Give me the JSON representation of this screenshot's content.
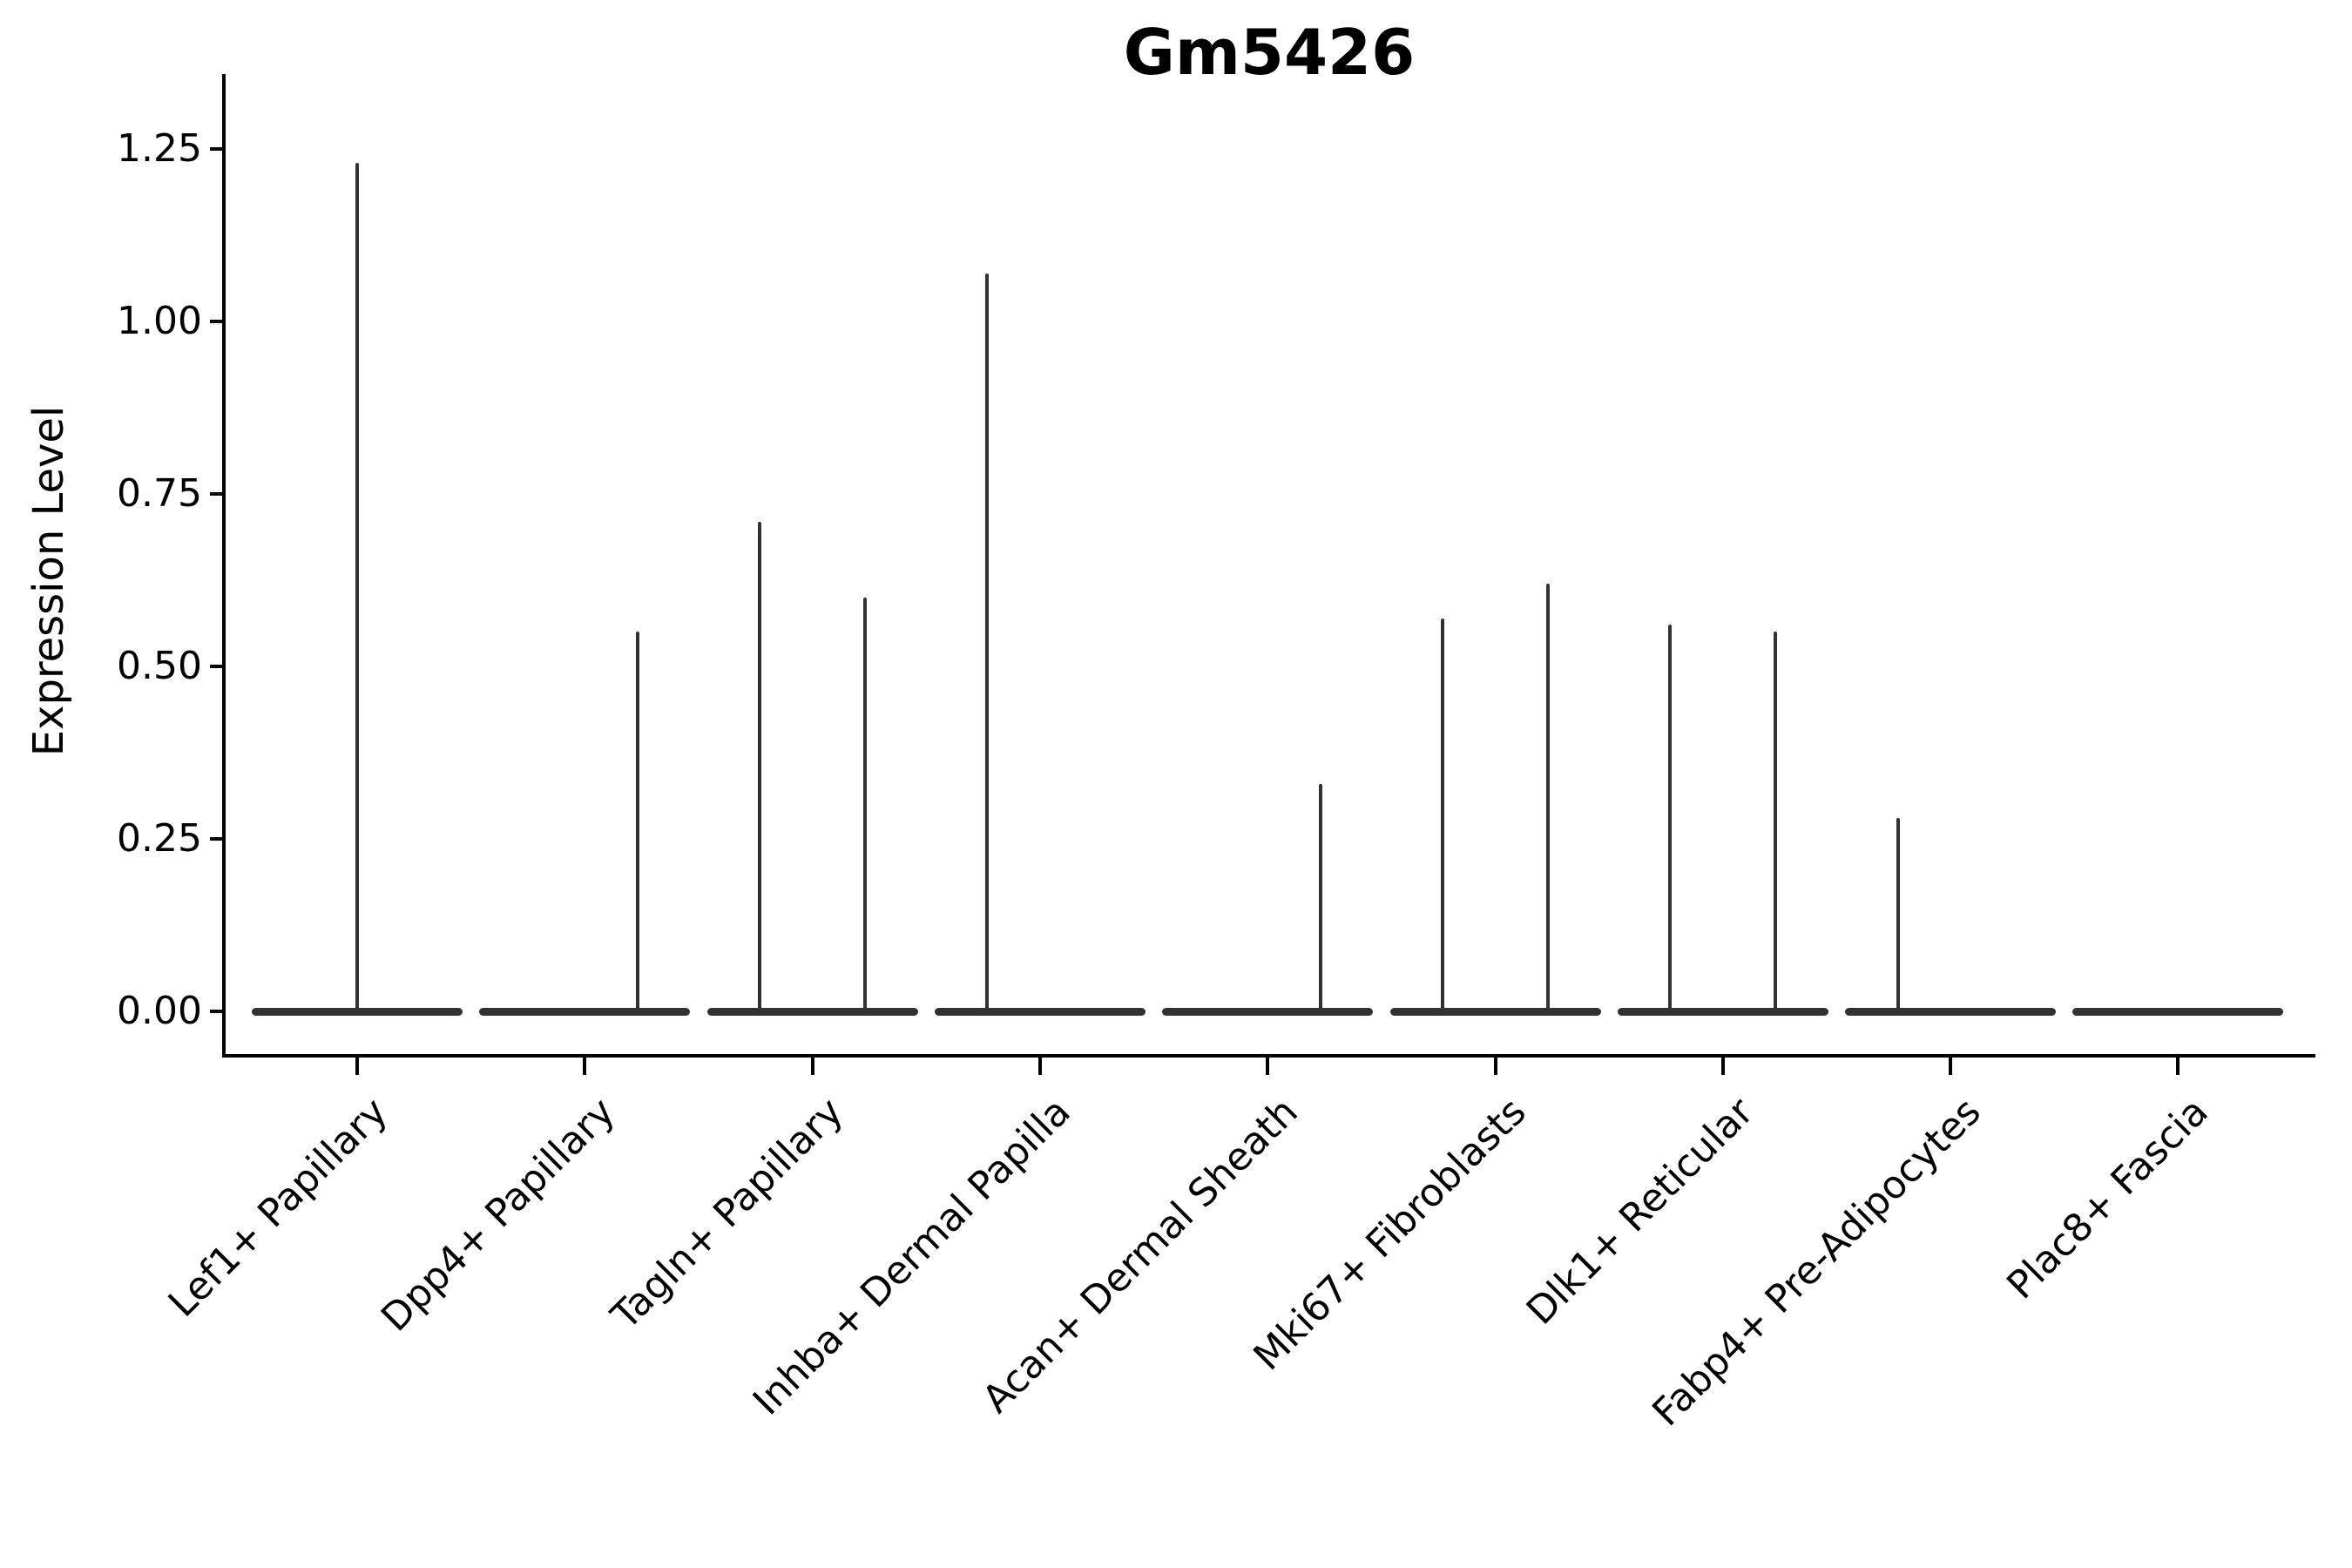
{
  "title": "Gm5426",
  "y_axis": {
    "label": "Expression Level"
  },
  "chart_data": {
    "type": "violin",
    "title": "Gm5426",
    "xlabel": "",
    "ylabel": "Expression Level",
    "ylim": [
      0,
      1.25
    ],
    "ytick_values": [
      0.0,
      0.25,
      0.5,
      0.75,
      1.0,
      1.25
    ],
    "ytick_labels": [
      "0.00",
      "0.25",
      "0.50",
      "0.75",
      "1.00",
      "1.25"
    ],
    "grid": false,
    "legend": false,
    "x_tick_label_rotation_deg": 45,
    "categories": [
      "Lef1+ Papillary",
      "Dpp4+ Papillary",
      "Tagln+ Papillary",
      "Inhba+ Dermal Papilla",
      "Acan+ Dermal Sheath",
      "Mki67+ Fibroblasts",
      "Dlk1+ Reticular",
      "Fabp4+ Pre-Adipocytes",
      "Plac8+ Fascia"
    ],
    "violins": [
      {
        "category": "Lef1+ Papillary",
        "baseline_value": 0.0,
        "max_value": 1.23,
        "spikes": [
          {
            "x_offset_frac": 0.0,
            "value": 1.23
          }
        ]
      },
      {
        "category": "Dpp4+ Papillary",
        "baseline_value": 0.0,
        "max_value": 0.55,
        "spikes": [
          {
            "x_offset_frac": 0.25,
            "value": 0.55
          }
        ]
      },
      {
        "category": "Tagln+ Papillary",
        "baseline_value": 0.0,
        "max_value": 0.71,
        "spikes": [
          {
            "x_offset_frac": -0.25,
            "value": 0.71
          },
          {
            "x_offset_frac": 0.25,
            "value": 0.6
          }
        ]
      },
      {
        "category": "Inhba+ Dermal Papilla",
        "baseline_value": 0.0,
        "max_value": 1.07,
        "spikes": [
          {
            "x_offset_frac": -0.25,
            "value": 1.07
          }
        ]
      },
      {
        "category": "Acan+ Dermal Sheath",
        "baseline_value": 0.0,
        "max_value": 0.33,
        "spikes": [
          {
            "x_offset_frac": 0.25,
            "value": 0.33
          }
        ]
      },
      {
        "category": "Mki67+ Fibroblasts",
        "baseline_value": 0.0,
        "max_value": 0.62,
        "spikes": [
          {
            "x_offset_frac": -0.25,
            "value": 0.57
          },
          {
            "x_offset_frac": 0.25,
            "value": 0.62
          }
        ]
      },
      {
        "category": "Dlk1+ Reticular",
        "baseline_value": 0.0,
        "max_value": 0.56,
        "spikes": [
          {
            "x_offset_frac": -0.25,
            "value": 0.56
          },
          {
            "x_offset_frac": 0.25,
            "value": 0.55
          }
        ]
      },
      {
        "category": "Fabp4+ Pre-Adipocytes",
        "baseline_value": 0.0,
        "max_value": 0.28,
        "spikes": [
          {
            "x_offset_frac": -0.25,
            "value": 0.28
          }
        ]
      },
      {
        "category": "Plac8+ Fascia",
        "baseline_value": 0.0,
        "max_value": 0.0,
        "spikes": []
      }
    ],
    "colors": {
      "violin": "#323232",
      "axis": "#000000",
      "text": "#000000",
      "background": "#ffffff"
    }
  }
}
